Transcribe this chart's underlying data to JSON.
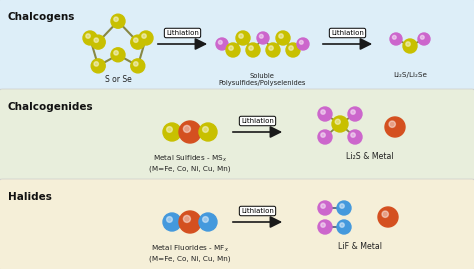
{
  "panel_colors": [
    "#ddeef8",
    "#e8eedc",
    "#f5efd8"
  ],
  "panel_labels": [
    "Chalcogens",
    "Chalcogenides",
    "Halides"
  ],
  "colors": {
    "sulfur": "#c8c000",
    "lithium": "#cc66cc",
    "metal": "#d45020",
    "fluoride": "#4499dd",
    "bond": "#777744"
  },
  "arrow_color": "#1a1a1a",
  "text_color": "#111111",
  "label_fontsize": 7.5,
  "sub_fontsize": 5.2,
  "lithiation_fontsize": 5.0
}
